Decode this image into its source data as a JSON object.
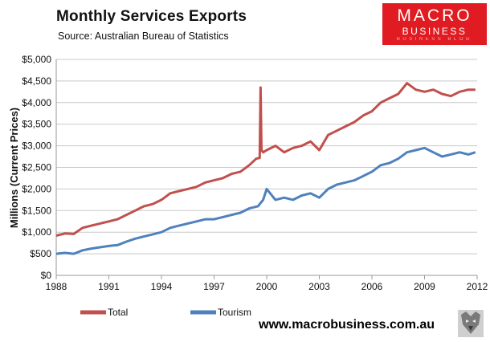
{
  "header": {
    "title": "Monthly  Services Exports",
    "subtitle": "Source:  Australian Bureau of Statistics"
  },
  "logo": {
    "line1": "MACRO",
    "line2": "BUSINESS",
    "line3": "BUSINESS BLOG"
  },
  "website": "www.macrobusiness.com.au",
  "colors": {
    "total": "#c0504d",
    "tourism": "#4f81bd"
  },
  "chart_data": {
    "type": "line",
    "title": "Monthly  Services Exports",
    "xlabel": "",
    "ylabel": "Millions (Current Prices)",
    "xlim": [
      1988,
      2012
    ],
    "ylim": [
      0,
      5000
    ],
    "x_ticks": [
      "1988",
      "1991",
      "1994",
      "1997",
      "2000",
      "2003",
      "2006",
      "2009",
      "2012"
    ],
    "y_ticks": [
      "$0",
      "$500",
      "$1,000",
      "$1,500",
      "$2,000",
      "$2,500",
      "$3,000",
      "$3,500",
      "$4,000",
      "$4,500",
      "$5,000"
    ],
    "legend_position": "bottom-left",
    "grid": "horizontal",
    "series": [
      {
        "name": "Total",
        "x": [
          1988.0,
          1988.5,
          1989.0,
          1989.5,
          1990.0,
          1990.5,
          1991.0,
          1991.5,
          1992.0,
          1992.5,
          1993.0,
          1993.5,
          1994.0,
          1994.5,
          1995.0,
          1995.5,
          1996.0,
          1996.5,
          1997.0,
          1997.5,
          1998.0,
          1998.5,
          1999.0,
          1999.4,
          1999.6,
          1999.65,
          1999.7,
          1999.8,
          2000.0,
          2000.5,
          2001.0,
          2001.5,
          2002.0,
          2002.5,
          2003.0,
          2003.5,
          2004.0,
          2004.5,
          2005.0,
          2005.5,
          2006.0,
          2006.5,
          2007.0,
          2007.5,
          2008.0,
          2008.5,
          2009.0,
          2009.5,
          2010.0,
          2010.5,
          2011.0,
          2011.5,
          2011.9
        ],
        "values": [
          920,
          970,
          960,
          1100,
          1150,
          1200,
          1250,
          1300,
          1400,
          1500,
          1600,
          1650,
          1750,
          1900,
          1950,
          2000,
          2050,
          2150,
          2200,
          2250,
          2350,
          2400,
          2550,
          2700,
          2720,
          4350,
          2900,
          2850,
          2900,
          3000,
          2850,
          2950,
          3000,
          3100,
          2900,
          3250,
          3350,
          3450,
          3550,
          3700,
          3800,
          4000,
          4100,
          4200,
          4450,
          4300,
          4250,
          4300,
          4200,
          4150,
          4250,
          4300,
          4300
        ]
      },
      {
        "name": "Tourism",
        "x": [
          1988.0,
          1988.5,
          1989.0,
          1989.5,
          1990.0,
          1990.5,
          1991.0,
          1991.5,
          1992.0,
          1992.5,
          1993.0,
          1993.5,
          1994.0,
          1994.5,
          1995.0,
          1995.5,
          1996.0,
          1996.5,
          1997.0,
          1997.5,
          1998.0,
          1998.5,
          1999.0,
          1999.5,
          1999.8,
          2000.0,
          2000.5,
          2001.0,
          2001.5,
          2002.0,
          2002.5,
          2003.0,
          2003.5,
          2004.0,
          2004.5,
          2005.0,
          2005.5,
          2006.0,
          2006.5,
          2007.0,
          2007.5,
          2008.0,
          2008.5,
          2009.0,
          2009.5,
          2010.0,
          2010.5,
          2011.0,
          2011.5,
          2011.9
        ],
        "values": [
          500,
          520,
          500,
          580,
          620,
          650,
          680,
          700,
          780,
          850,
          900,
          950,
          1000,
          1100,
          1150,
          1200,
          1250,
          1300,
          1300,
          1350,
          1400,
          1450,
          1550,
          1600,
          1750,
          2000,
          1750,
          1800,
          1750,
          1850,
          1900,
          1800,
          2000,
          2100,
          2150,
          2200,
          2300,
          2400,
          2550,
          2600,
          2700,
          2850,
          2900,
          2950,
          2850,
          2750,
          2800,
          2850,
          2800,
          2850
        ]
      }
    ]
  }
}
